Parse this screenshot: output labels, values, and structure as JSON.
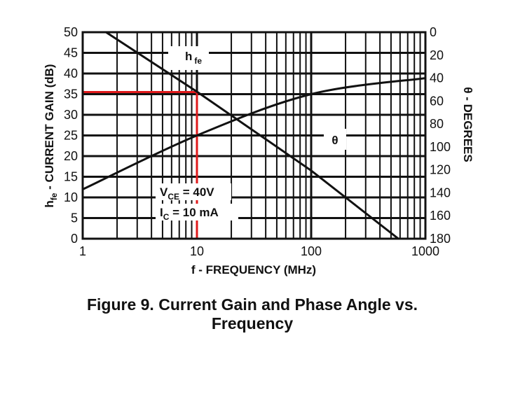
{
  "chart_data": {
    "type": "line",
    "title": "Figure 9. Current Gain and Phase Angle vs. Frequency",
    "title_lines": [
      "Figure 9. Current Gain and Phase Angle vs.",
      "Frequency"
    ],
    "xlabel": "f - FREQUENCY (MHz)",
    "x_scale": "log",
    "xlim": [
      1,
      1000
    ],
    "x_ticks": [
      "1",
      "10",
      "100",
      "1000"
    ],
    "ylabel_left": {
      "main": "h",
      "sub": "fe",
      "rest": " - CURRENT GAIN (dB)"
    },
    "ylim_left": [
      0,
      50
    ],
    "y_ticks_left": [
      "0",
      "5",
      "10",
      "15",
      "20",
      "25",
      "30",
      "35",
      "40",
      "45",
      "50"
    ],
    "ylabel_right": "θ - DEGREES",
    "ylim_right": [
      180,
      0
    ],
    "y_ticks_right": [
      "0",
      "20",
      "40",
      "60",
      "80",
      "100",
      "120",
      "140",
      "160",
      "180"
    ],
    "grid": true,
    "series": [
      {
        "name": "h fe",
        "label_main": "h",
        "label_sub": "fe",
        "axis": "left",
        "color": "#111111",
        "x": [
          1.6,
          10,
          100,
          580
        ],
        "y": [
          50,
          35.6,
          16.5,
          0
        ]
      },
      {
        "name": "θ",
        "axis": "right",
        "color": "#111111",
        "x": [
          1,
          10,
          100,
          1000
        ],
        "y": [
          137,
          90,
          54,
          40
        ]
      }
    ],
    "annotations": {
      "condition_vce": {
        "main": "V",
        "sub": "CE",
        "rest": " = 40V"
      },
      "condition_ic": {
        "main": "I",
        "sub": "C",
        "rest": " = 10 mA"
      },
      "highlight": {
        "color": "#e0191b",
        "x": 10,
        "y": 35.5
      }
    }
  }
}
